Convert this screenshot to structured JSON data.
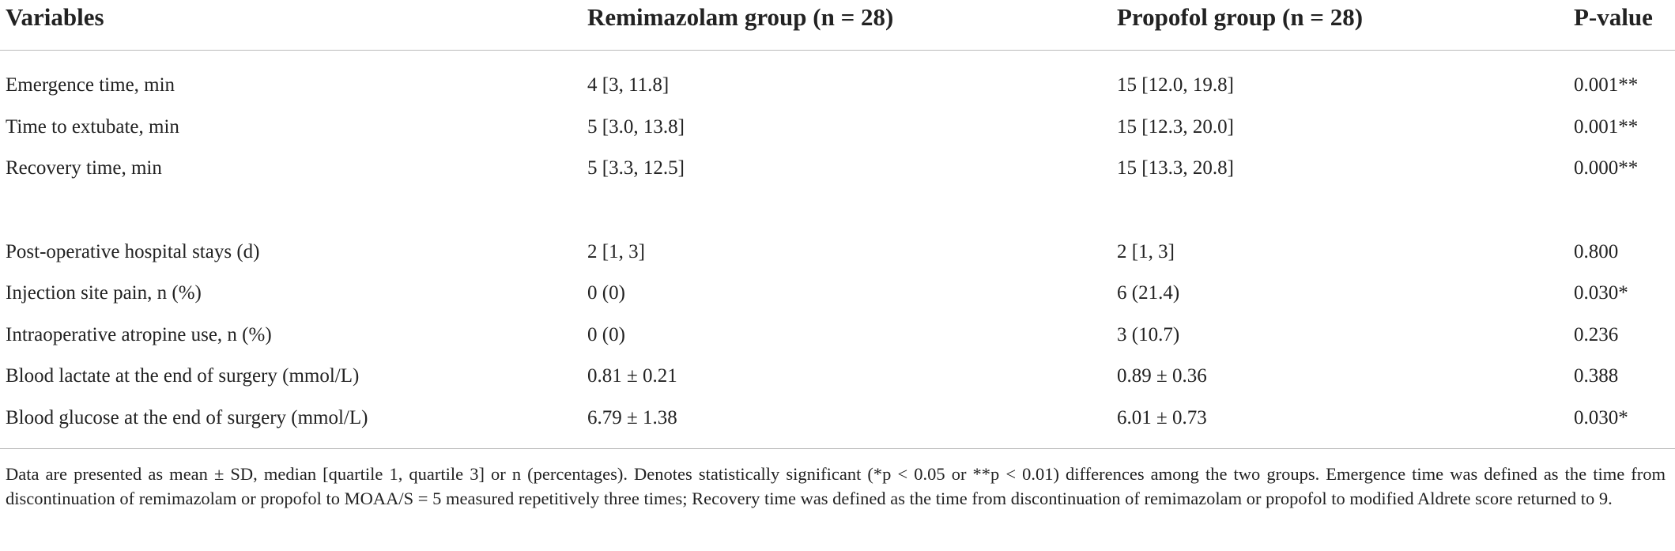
{
  "table": {
    "columns": [
      "Variables",
      "Remimazolam group (n = 28)",
      "Propofol group (n = 28)",
      "P-value"
    ],
    "row_groups": [
      [
        [
          "Emergence time, min",
          "4 [3, 11.8]",
          "15 [12.0, 19.8]",
          "0.001**"
        ],
        [
          "Time to extubate, min",
          "5 [3.0, 13.8]",
          "15 [12.3, 20.0]",
          "0.001**"
        ],
        [
          "Recovery time, min",
          "5 [3.3, 12.5]",
          "15 [13.3, 20.8]",
          "0.000**"
        ]
      ],
      [
        [
          "Post-operative hospital stays (d)",
          "2 [1, 3]",
          "2 [1, 3]",
          "0.800"
        ],
        [
          "Injection site pain, n (%)",
          "0 (0)",
          "6 (21.4)",
          "0.030*"
        ],
        [
          "Intraoperative atropine use, n (%)",
          "0 (0)",
          "3 (10.7)",
          "0.236"
        ],
        [
          "Blood lactate at the end of surgery (mmol/L)",
          "0.81 ± 0.21",
          "0.89 ± 0.36",
          "0.388"
        ],
        [
          "Blood glucose at the end of surgery (mmol/L)",
          "6.79 ± 1.38",
          "6.01 ± 0.73",
          "0.030*"
        ]
      ]
    ],
    "footnote": "Data are presented as mean ± SD, median [quartile 1, quartile 3] or n (percentages). Denotes statistically significant (*p < 0.05 or **p < 0.01) differences among the two groups. Emergence time was defined as the time from discontinuation of remimazolam or propofol to MOAA/S = 5 measured repetitively three times; Recovery time was defined as the time from discontinuation of remimazolam or propofol to modified Aldrete score returned to 9."
  }
}
